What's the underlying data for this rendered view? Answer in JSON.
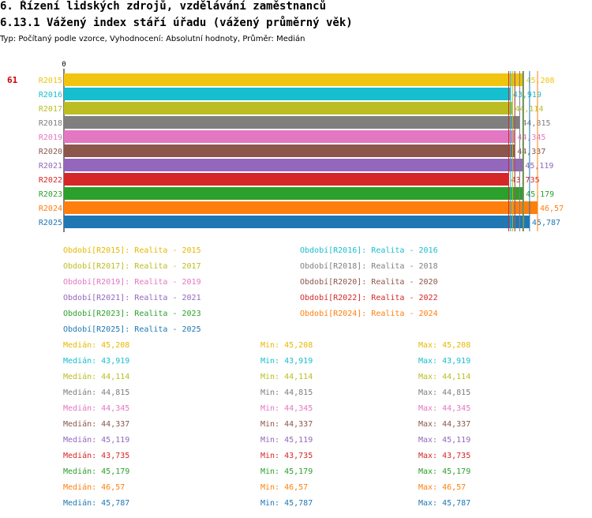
{
  "header": {
    "title": "6. Řízení lidských zdrojů, vzdělávání zaměstnanců",
    "subtitle": "6.13.1 Vážený index stáří úřadu (vážený průměrný věk)",
    "type_line": "Typ: Počítaný podle vzorce, Vyhodnocení: Absolutní hodnoty, Průměr: Medián"
  },
  "chart_data": {
    "type": "bar",
    "orientation": "horizontal",
    "row_marker": "61",
    "axis_zero_label": "0",
    "categories": [
      "R2015",
      "R2016",
      "R2017",
      "R2018",
      "R2019",
      "R2020",
      "R2021",
      "R2022",
      "R2023",
      "R2024",
      "R2025"
    ],
    "values": [
      45.208,
      43.919,
      44.114,
      44.815,
      44.345,
      44.337,
      45.119,
      43.735,
      45.179,
      46.57,
      45.787
    ],
    "value_labels": [
      "45,208",
      "43,919",
      "44,114",
      "44,815",
      "44,345",
      "44,337",
      "45,119",
      "43,735",
      "45,179",
      "46,57",
      "45,787"
    ],
    "colors": [
      "#f1c40f",
      "#17becf",
      "#bcbd22",
      "#7f7f7f",
      "#e377c2",
      "#8c564b",
      "#9467bd",
      "#d62728",
      "#2ca02c",
      "#ff7f0e",
      "#1f77b4"
    ],
    "xlim": [
      0,
      46.57
    ]
  },
  "legend": [
    {
      "text": "Období[R2015]: Realita - 2015",
      "color": "#e6b800"
    },
    {
      "text": "Období[R2016]: Realita - 2016",
      "color": "#17becf"
    },
    {
      "text": "Období[R2017]: Realita - 2017",
      "color": "#bcbd22"
    },
    {
      "text": "Období[R2018]: Realita - 2018",
      "color": "#7f7f7f"
    },
    {
      "text": "Období[R2019]: Realita - 2019",
      "color": "#e377c2"
    },
    {
      "text": "Období[R2020]: Realita - 2020",
      "color": "#8c564b"
    },
    {
      "text": "Období[R2021]: Realita - 2021",
      "color": "#9467bd"
    },
    {
      "text": "Období[R2022]: Realita - 2022",
      "color": "#d62728"
    },
    {
      "text": "Období[R2023]: Realita - 2023",
      "color": "#2ca02c"
    },
    {
      "text": "Období[R2024]: Realita - 2024",
      "color": "#ff7f0e"
    },
    {
      "text": "Období[R2025]: Realita - 2025",
      "color": "#1f77b4"
    }
  ],
  "stats": [
    {
      "median": "Medián: 45,208",
      "min": "Min: 45,208",
      "max": "Max: 45,208",
      "color": "#e6b800"
    },
    {
      "median": "Medián: 43,919",
      "min": "Min: 43,919",
      "max": "Max: 43,919",
      "color": "#17becf"
    },
    {
      "median": "Medián: 44,114",
      "min": "Min: 44,114",
      "max": "Max: 44,114",
      "color": "#bcbd22"
    },
    {
      "median": "Medián: 44,815",
      "min": "Min: 44,815",
      "max": "Max: 44,815",
      "color": "#7f7f7f"
    },
    {
      "median": "Medián: 44,345",
      "min": "Min: 44,345",
      "max": "Max: 44,345",
      "color": "#e377c2"
    },
    {
      "median": "Medián: 44,337",
      "min": "Min: 44,337",
      "max": "Max: 44,337",
      "color": "#8c564b"
    },
    {
      "median": "Medián: 45,119",
      "min": "Min: 45,119",
      "max": "Max: 45,119",
      "color": "#9467bd"
    },
    {
      "median": "Medián: 43,735",
      "min": "Min: 43,735",
      "max": "Max: 43,735",
      "color": "#d62728"
    },
    {
      "median": "Medián: 45,179",
      "min": "Min: 45,179",
      "max": "Max: 45,179",
      "color": "#2ca02c"
    },
    {
      "median": "Medián: 46,57",
      "min": "Min: 46,57",
      "max": "Max: 46,57",
      "color": "#ff7f0e"
    },
    {
      "median": "Medián: 45,787",
      "min": "Min: 45,787",
      "max": "Max: 45,787",
      "color": "#1f77b4"
    }
  ]
}
